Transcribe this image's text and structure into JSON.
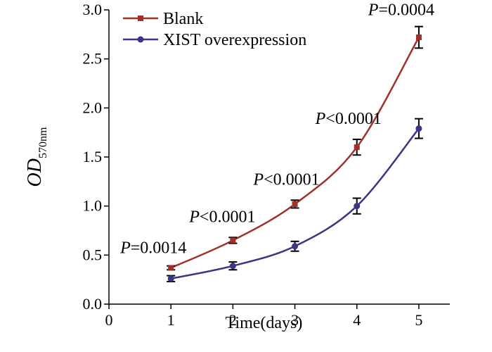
{
  "chart_data": {
    "type": "line",
    "xlabel": "Time(days)",
    "ylabel": {
      "main": "OD",
      "subscript": "570nm"
    },
    "xlim": [
      0,
      5.5
    ],
    "ylim": [
      0,
      3.0
    ],
    "x_ticks": [
      "0",
      "1",
      "2",
      "3",
      "4",
      "5"
    ],
    "y_ticks": [
      "0.0",
      "0.5",
      "1.0",
      "1.5",
      "2.0",
      "2.5",
      "3.0"
    ],
    "x": [
      1,
      2,
      3,
      4,
      5
    ],
    "series": [
      {
        "name": "Blank",
        "color": "#a0302a",
        "marker": "square",
        "values": [
          0.37,
          0.65,
          1.02,
          1.6,
          2.72
        ],
        "errors": [
          0.02,
          0.03,
          0.04,
          0.08,
          0.11
        ]
      },
      {
        "name": "XIST overexpression",
        "color": "#3c3486",
        "marker": "circle",
        "values": [
          0.26,
          0.39,
          0.59,
          1.0,
          1.79
        ],
        "errors": [
          0.03,
          0.04,
          0.05,
          0.08,
          0.1
        ]
      }
    ],
    "annotations": [
      {
        "x": 1,
        "y": 0.37,
        "prefix": "P",
        "text": "=0.0014"
      },
      {
        "x": 2,
        "y": 0.65,
        "prefix": "P",
        "text": "<0.0001"
      },
      {
        "x": 3,
        "y": 1.02,
        "prefix": "P",
        "text": "<0.0001"
      },
      {
        "x": 4,
        "y": 1.6,
        "prefix": "P",
        "text": "<0.0001"
      },
      {
        "x": 5,
        "y": 2.72,
        "prefix": "P",
        "text": "=0.0004"
      }
    ],
    "legend_position": "top-left",
    "grid": false
  }
}
